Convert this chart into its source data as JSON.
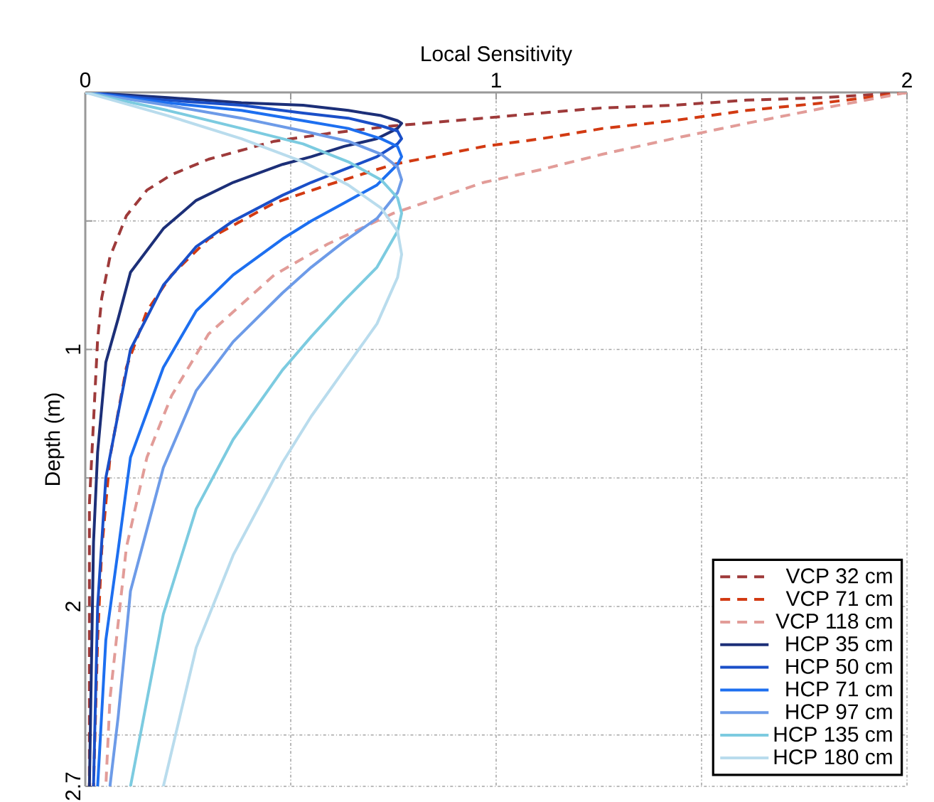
{
  "chart_data": {
    "type": "line",
    "xlabel": "Local Sensitivity",
    "ylabel": "Depth (m)",
    "xlim": [
      0,
      2
    ],
    "xticks": [
      0,
      {
        "value": 0.5,
        "label": null
      },
      1,
      {
        "value": 1.5,
        "label": null
      },
      2
    ],
    "ylim": [
      2.7,
      0
    ],
    "yticks": [
      {
        "value": 0,
        "label": null
      },
      {
        "value": 0.5,
        "label": null
      },
      1,
      {
        "value": 1.5,
        "label": null
      },
      2,
      {
        "value": 2.5,
        "label": null
      },
      2.7
    ],
    "grid": true,
    "legend": "bottom right",
    "marker": "none",
    "series": [
      {
        "name": "VCP 32 cm",
        "color": "#9e3a3a",
        "line_style": "dashed",
        "x": [
          2,
          1.8,
          1.61,
          1.43,
          1.26,
          1.11,
          0.97,
          0.75,
          0.59,
          0.46,
          0.3,
          0.21,
          0.15,
          0.1,
          0.06,
          0.04,
          0.03,
          0.02,
          0.01,
          0.01
        ],
        "values": [
          0,
          0.02,
          0.03,
          0.05,
          0.06,
          0.08,
          0.1,
          0.13,
          0.16,
          0.19,
          0.26,
          0.32,
          0.38,
          0.48,
          0.64,
          0.8,
          0.96,
          1.28,
          1.6,
          2.7
        ]
      },
      {
        "name": "VCP 71 cm",
        "color": "#d23a12",
        "line_style": "dashed",
        "x": [
          2,
          1.8,
          1.61,
          1.43,
          1.26,
          1.11,
          0.97,
          0.75,
          0.59,
          0.46,
          0.3,
          0.21,
          0.15,
          0.1,
          0.06,
          0.04,
          0.03,
          0.02
        ],
        "values": [
          0,
          0.04,
          0.07,
          0.11,
          0.14,
          0.18,
          0.21,
          0.28,
          0.36,
          0.43,
          0.57,
          0.71,
          0.85,
          1.07,
          1.42,
          1.78,
          2.13,
          2.7
        ]
      },
      {
        "name": "VCP 118 cm",
        "color": "#e29c98",
        "line_style": "dashed",
        "x": [
          2,
          1.8,
          1.61,
          1.43,
          1.26,
          1.11,
          0.97,
          0.75,
          0.59,
          0.46,
          0.3,
          0.21,
          0.15,
          0.1,
          0.06,
          0.05
        ],
        "values": [
          0,
          0.06,
          0.12,
          0.18,
          0.24,
          0.3,
          0.35,
          0.47,
          0.59,
          0.71,
          0.94,
          1.18,
          1.42,
          1.77,
          2.36,
          2.7
        ]
      },
      {
        "name": "HCP 35 cm",
        "color": "#1c2f78",
        "line_style": "solid",
        "x": [
          0,
          0.2,
          0.38,
          0.53,
          0.64,
          0.72,
          0.76,
          0.77,
          0.76,
          0.71,
          0.63,
          0.55,
          0.48,
          0.36,
          0.27,
          0.19,
          0.11,
          0.08,
          0.05,
          0.03,
          0.02,
          0.01
        ],
        "values": [
          0,
          0.02,
          0.04,
          0.05,
          0.07,
          0.09,
          0.11,
          0.12,
          0.14,
          0.18,
          0.21,
          0.25,
          0.28,
          0.35,
          0.42,
          0.53,
          0.7,
          0.88,
          1.05,
          1.4,
          1.75,
          2.7
        ]
      },
      {
        "name": "HCP 50 cm",
        "color": "#1a4fc8",
        "line_style": "solid",
        "x": [
          0,
          0.2,
          0.38,
          0.53,
          0.64,
          0.72,
          0.76,
          0.77,
          0.76,
          0.71,
          0.63,
          0.55,
          0.48,
          0.36,
          0.27,
          0.19,
          0.11,
          0.08,
          0.05,
          0.03,
          0.02
        ],
        "values": [
          0,
          0.03,
          0.05,
          0.08,
          0.1,
          0.13,
          0.15,
          0.18,
          0.2,
          0.25,
          0.3,
          0.35,
          0.4,
          0.5,
          0.6,
          0.75,
          1,
          1.25,
          1.5,
          2,
          2.7
        ]
      },
      {
        "name": "HCP 71 cm",
        "color": "#1d6ff0",
        "line_style": "solid",
        "x": [
          0,
          0.2,
          0.38,
          0.53,
          0.64,
          0.72,
          0.76,
          0.77,
          0.76,
          0.71,
          0.63,
          0.55,
          0.48,
          0.36,
          0.27,
          0.19,
          0.11,
          0.08,
          0.05,
          0.03
        ],
        "values": [
          0,
          0.04,
          0.07,
          0.11,
          0.14,
          0.18,
          0.21,
          0.25,
          0.28,
          0.36,
          0.43,
          0.5,
          0.57,
          0.71,
          0.85,
          1.07,
          1.42,
          1.78,
          2.13,
          2.7
        ]
      },
      {
        "name": "HCP 97 cm",
        "color": "#6d9be8",
        "line_style": "solid",
        "x": [
          0,
          0.2,
          0.38,
          0.53,
          0.64,
          0.72,
          0.76,
          0.77,
          0.76,
          0.71,
          0.63,
          0.55,
          0.48,
          0.36,
          0.27,
          0.19,
          0.11,
          0.08,
          0.06
        ],
        "values": [
          0,
          0.05,
          0.1,
          0.15,
          0.19,
          0.24,
          0.29,
          0.34,
          0.39,
          0.49,
          0.58,
          0.68,
          0.78,
          0.97,
          1.16,
          1.46,
          1.94,
          2.43,
          2.7
        ]
      },
      {
        "name": "HCP 135 cm",
        "color": "#7ccbe0",
        "line_style": "solid",
        "x": [
          0,
          0.2,
          0.38,
          0.53,
          0.64,
          0.72,
          0.76,
          0.77,
          0.76,
          0.71,
          0.63,
          0.55,
          0.48,
          0.36,
          0.27,
          0.19,
          0.11
        ],
        "values": [
          0,
          0.07,
          0.14,
          0.2,
          0.27,
          0.34,
          0.41,
          0.47,
          0.54,
          0.68,
          0.81,
          0.95,
          1.08,
          1.35,
          1.62,
          2.03,
          2.7
        ]
      },
      {
        "name": "HCP 180 cm",
        "color": "#b9dced",
        "line_style": "solid",
        "x": [
          0,
          0.2,
          0.38,
          0.53,
          0.64,
          0.72,
          0.76,
          0.77,
          0.76,
          0.71,
          0.63,
          0.55,
          0.48,
          0.36,
          0.27,
          0.19
        ],
        "values": [
          0,
          0.09,
          0.18,
          0.27,
          0.36,
          0.45,
          0.54,
          0.63,
          0.72,
          0.9,
          1.08,
          1.26,
          1.44,
          1.8,
          2.16,
          2.7
        ]
      }
    ]
  }
}
